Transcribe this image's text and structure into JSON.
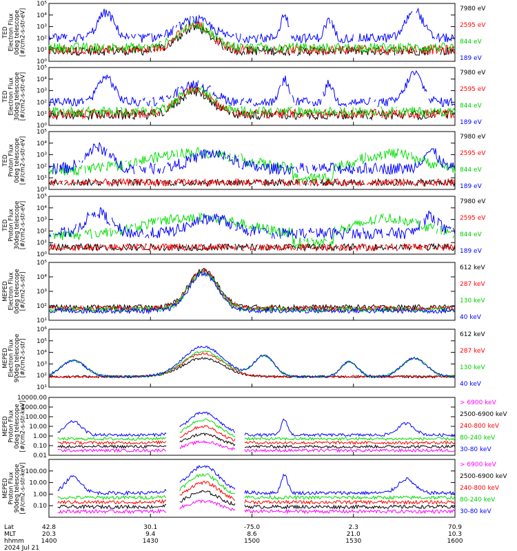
{
  "chart_data": {
    "type": "line",
    "x_time_range": [
      "1400",
      "1600"
    ],
    "grid": false,
    "legend_placement": "right",
    "xaxis": {
      "row_labels": [
        "Lat",
        "MLT",
        "hhmm"
      ],
      "ticks": [
        {
          "lat": "42.8",
          "mlt": "20.3",
          "hhmm": "1400"
        },
        {
          "lat": "30.1",
          "mlt": "9.4",
          "hhmm": "1430"
        },
        {
          "lat": "-75.0",
          "mlt": "8.6",
          "hhmm": "1500"
        },
        {
          "lat": "2.3",
          "mlt": "21.0",
          "hhmm": "1530"
        },
        {
          "lat": "70.9",
          "mlt": "10.3",
          "hhmm": "1600"
        }
      ],
      "date": "2024 Jul 21"
    },
    "panels": [
      {
        "ylabel": [
          "TED",
          "Electron Flux",
          "0deg telescope",
          "[#/cm2-s-str-eV]"
        ],
        "ylim": [
          1.0,
          100000.0
        ],
        "log": true,
        "ticks": [
          "10⁰",
          "10¹",
          "10²",
          "10³",
          "10⁴",
          "10⁵"
        ],
        "series": [
          {
            "name": "7980 eV",
            "color": "#000000"
          },
          {
            "name": "2595 eV",
            "color": "#ff0000"
          },
          {
            "name": "844 eV",
            "color": "#00dd00"
          },
          {
            "name": "189 eV",
            "color": "#0000ff"
          }
        ]
      },
      {
        "ylabel": [
          "TED",
          "Electron Flux",
          "30deg telescope",
          "[#/cm2-s-str-eV]"
        ],
        "ylim": [
          1.0,
          100000.0
        ],
        "log": true,
        "ticks": [
          "10⁰",
          "10¹",
          "10²",
          "10³",
          "10⁴",
          "10⁵"
        ],
        "series": [
          {
            "name": "7980 eV",
            "color": "#000000"
          },
          {
            "name": "2595 eV",
            "color": "#ff0000"
          },
          {
            "name": "844 eV",
            "color": "#00dd00"
          },
          {
            "name": "189 eV",
            "color": "#0000ff"
          }
        ]
      },
      {
        "ylabel": [
          "TED",
          "Proton Flux",
          "0deg telescope",
          "[#/cm2-s-str-eV]"
        ],
        "ylim": [
          1.0,
          100000.0
        ],
        "log": true,
        "ticks": [
          "10⁰",
          "10¹",
          "10²",
          "10³",
          "10⁴",
          "10⁵"
        ],
        "series": [
          {
            "name": "7980 eV",
            "color": "#000000"
          },
          {
            "name": "2595 eV",
            "color": "#ff0000"
          },
          {
            "name": "844 eV",
            "color": "#00dd00"
          },
          {
            "name": "189 eV",
            "color": "#0000ff"
          }
        ]
      },
      {
        "ylabel": [
          "TED",
          "Proton Flux",
          "30deg telescope",
          "[#/cm2-s-str-eV]"
        ],
        "ylim": [
          1.0,
          100000.0
        ],
        "log": true,
        "ticks": [
          "10⁰",
          "10¹",
          "10²",
          "10³",
          "10⁴",
          "10⁵"
        ],
        "series": [
          {
            "name": "7980 eV",
            "color": "#000000"
          },
          {
            "name": "2595 eV",
            "color": "#ff0000"
          },
          {
            "name": "844 eV",
            "color": "#00dd00"
          },
          {
            "name": "189 eV",
            "color": "#0000ff"
          }
        ]
      },
      {
        "ylabel": [
          "MEPED",
          "Electron Flux",
          "0deg telescope",
          "[#/cm2-s-str]"
        ],
        "ylim": [
          10.0,
          100000.0
        ],
        "log": true,
        "ticks": [
          "10¹",
          "10²",
          "10³",
          "10⁴",
          "10⁵"
        ],
        "series": [
          {
            "name": "612 keV",
            "color": "#000000"
          },
          {
            "name": "287 keV",
            "color": "#ff0000"
          },
          {
            "name": "130 keV",
            "color": "#00dd00"
          },
          {
            "name": "40 keV",
            "color": "#0000ff"
          }
        ]
      },
      {
        "ylabel": [
          "MEPED",
          "Electron Flux",
          "90deg telescope",
          "[#/cm2-s-str]"
        ],
        "ylim": [
          10.0,
          1000000.0
        ],
        "log": true,
        "ticks": [
          "10¹",
          "10²",
          "10³",
          "10⁴",
          "10⁵",
          "10⁶"
        ],
        "series": [
          {
            "name": "612 keV",
            "color": "#000000"
          },
          {
            "name": "287 keV",
            "color": "#ff0000"
          },
          {
            "name": "130 keV",
            "color": "#00dd00"
          },
          {
            "name": "40 keV",
            "color": "#0000ff"
          }
        ]
      },
      {
        "ylabel": [
          "MEPED",
          "Proton Flux",
          "0deg telescope",
          "[#/cm2-s-str-keV]"
        ],
        "ylim": [
          0.01,
          10000
        ],
        "log": true,
        "ticks": [
          "0.01",
          "0.10",
          "1.00",
          "10.00",
          "100.00",
          "1000.00",
          "10000.00"
        ],
        "series": [
          {
            "name": "> 6900 keV",
            "color": "#ff00ff"
          },
          {
            "name": "2500-6900 keV",
            "color": "#000000"
          },
          {
            "name": "240-800 keV",
            "color": "#ff0000"
          },
          {
            "name": "80-240 keV",
            "color": "#00dd00"
          },
          {
            "name": "30-80 keV",
            "color": "#0000ff"
          }
        ]
      },
      {
        "ylabel": [
          "MEPED",
          "Proton Flux",
          "90deg telescope",
          "[#/cm2-s-str-keV]"
        ],
        "ylim": [
          0.01,
          1000
        ],
        "log": true,
        "ticks": [
          "0.10",
          "1.00",
          "10.00",
          "100.00"
        ],
        "series": [
          {
            "name": "> 6900 keV",
            "color": "#ff00ff"
          },
          {
            "name": "2500-6900 keV",
            "color": "#000000"
          },
          {
            "name": "240-800 keV",
            "color": "#ff0000"
          },
          {
            "name": "80-240 keV",
            "color": "#00dd00"
          },
          {
            "name": "30-80 keV",
            "color": "#0000ff"
          }
        ]
      }
    ]
  }
}
